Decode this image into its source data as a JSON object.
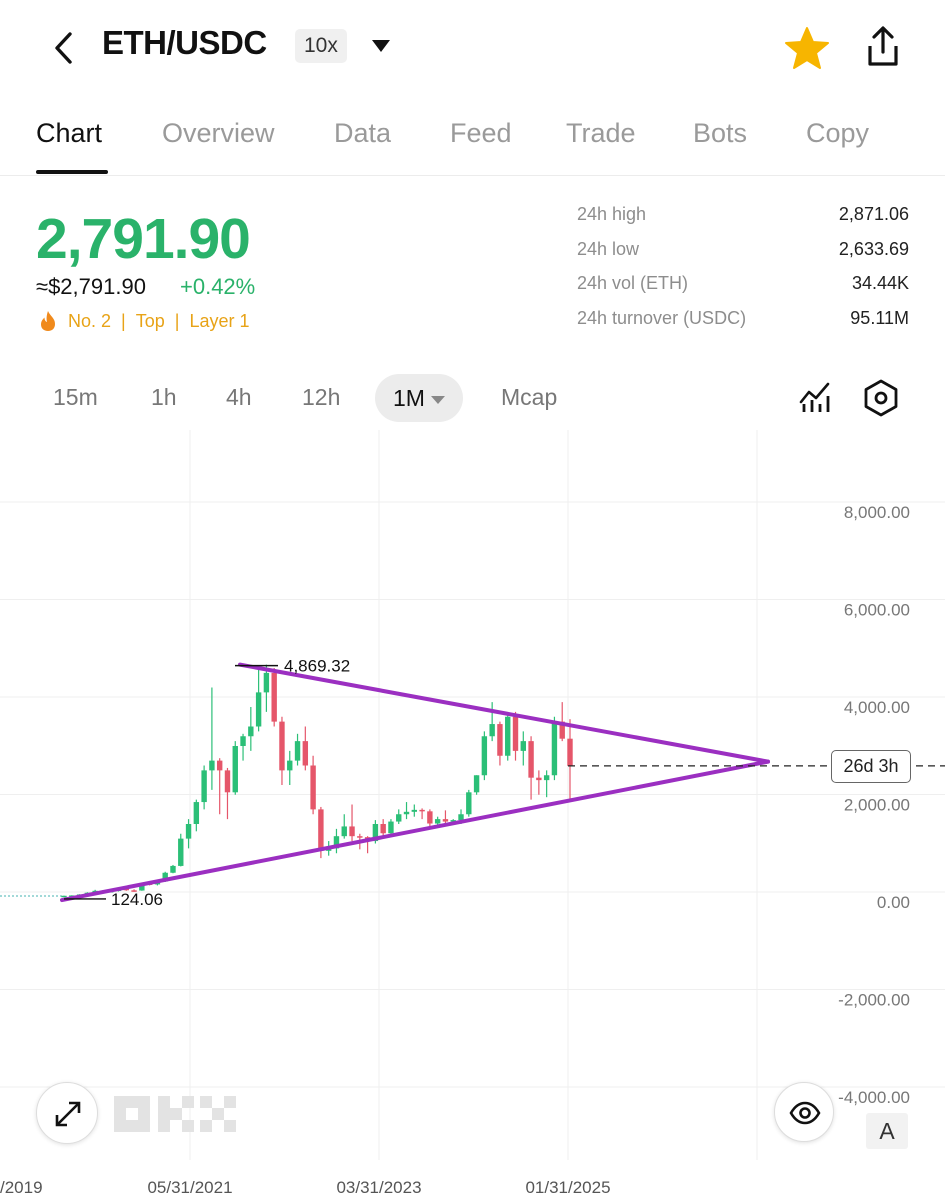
{
  "header": {
    "pair": "ETH/USDC",
    "leverage": "10x",
    "icons": [
      "back-arrow-icon",
      "caret-down-icon",
      "star-icon",
      "share-icon"
    ],
    "star_color": "#f7b500"
  },
  "tabs": [
    "Chart",
    "Overview",
    "Data",
    "Feed",
    "Trade",
    "Bots",
    "Copy"
  ],
  "active_tab": "Chart",
  "ticker": {
    "price": "2,791.90",
    "usd_equiv": "≈$2,791.90",
    "change": "+0.42%",
    "tags": [
      "No. 2",
      "Top",
      "Layer 1"
    ],
    "positive_color": "#2ab26a",
    "tag_color": "#e8a317"
  },
  "stats": [
    {
      "label": "24h high",
      "value": "2,871.06"
    },
    {
      "label": "24h low",
      "value": "2,633.69"
    },
    {
      "label": "24h vol (ETH)",
      "value": "34.44K"
    },
    {
      "label": "24h turnover (USDC)",
      "value": "95.11M"
    }
  ],
  "intervals": [
    "15m",
    "1h",
    "4h",
    "12h",
    "1M",
    "Mcap"
  ],
  "active_interval": "1M",
  "chart_data": {
    "type": "candlestick",
    "y_ticks": [
      "8,000.00",
      "6,000.00",
      "4,000.00",
      "2,000.00",
      "0.00",
      "-2,000.00",
      "-4,000.00"
    ],
    "x_ticks": [
      "/2019",
      "05/31/2021",
      "03/31/2023",
      "01/31/2025"
    ],
    "annotations": {
      "high": "4,869.32",
      "low": "124.06",
      "countdown": "26d 3h"
    },
    "current_price": 2791.9,
    "up_color": "#2bbf77",
    "down_color": "#e5566a",
    "trendline_color": "#9b2fc1",
    "candles": [
      [
        125,
        130,
        120,
        128
      ],
      [
        128,
        138,
        122,
        135
      ],
      [
        135,
        160,
        130,
        155
      ],
      [
        155,
        200,
        150,
        190
      ],
      [
        190,
        250,
        180,
        230
      ],
      [
        230,
        245,
        200,
        215
      ],
      [
        215,
        240,
        195,
        225
      ],
      [
        225,
        290,
        215,
        280
      ],
      [
        280,
        300,
        230,
        240
      ],
      [
        240,
        260,
        210,
        235
      ],
      [
        235,
        400,
        230,
        380
      ],
      [
        380,
        420,
        340,
        360
      ],
      [
        360,
        430,
        340,
        420
      ],
      [
        420,
        620,
        410,
        600
      ],
      [
        600,
        760,
        590,
        740
      ],
      [
        740,
        1400,
        730,
        1300
      ],
      [
        1300,
        1700,
        1100,
        1600
      ],
      [
        1600,
        2100,
        1450,
        2050
      ],
      [
        2050,
        2800,
        1900,
        2700
      ],
      [
        2700,
        4400,
        2300,
        2900
      ],
      [
        2900,
        2950,
        1800,
        2700
      ],
      [
        2700,
        2750,
        1700,
        2250
      ],
      [
        2250,
        3300,
        2200,
        3200
      ],
      [
        3200,
        3450,
        2900,
        3400
      ],
      [
        3400,
        4000,
        3100,
        3600
      ],
      [
        3600,
        4800,
        3500,
        4300
      ],
      [
        4300,
        4869,
        3900,
        4700
      ],
      [
        4700,
        4800,
        3600,
        3700
      ],
      [
        3700,
        3800,
        2400,
        2700
      ],
      [
        2700,
        3100,
        2400,
        2900
      ],
      [
        2900,
        3450,
        2800,
        3300
      ],
      [
        3300,
        3600,
        2700,
        2800
      ],
      [
        2800,
        3000,
        1800,
        1900
      ],
      [
        1900,
        1950,
        900,
        1050
      ],
      [
        1050,
        1250,
        950,
        1100
      ],
      [
        1100,
        1500,
        1000,
        1350
      ],
      [
        1350,
        1800,
        1300,
        1550
      ],
      [
        1550,
        2000,
        1250,
        1350
      ],
      [
        1350,
        1400,
        1080,
        1330
      ],
      [
        1330,
        1350,
        1000,
        1250
      ],
      [
        1250,
        1680,
        1200,
        1600
      ],
      [
        1600,
        1700,
        1300,
        1410
      ],
      [
        1410,
        1700,
        1400,
        1650
      ],
      [
        1650,
        1900,
        1600,
        1800
      ],
      [
        1800,
        2050,
        1700,
        1850
      ],
      [
        1850,
        2000,
        1750,
        1890
      ],
      [
        1890,
        1920,
        1700,
        1860
      ],
      [
        1860,
        1900,
        1550,
        1610
      ],
      [
        1610,
        1750,
        1550,
        1700
      ],
      [
        1700,
        1880,
        1600,
        1650
      ],
      [
        1650,
        1700,
        1600,
        1680
      ],
      [
        1680,
        1900,
        1600,
        1800
      ],
      [
        1800,
        2300,
        1750,
        2250
      ],
      [
        2250,
        2600,
        2200,
        2600
      ],
      [
        2600,
        3500,
        2500,
        3400
      ],
      [
        3400,
        4100,
        3300,
        3650
      ],
      [
        3650,
        3700,
        2800,
        3000
      ],
      [
        3000,
        3850,
        2900,
        3800
      ],
      [
        3800,
        3900,
        2900,
        3100
      ],
      [
        3100,
        3500,
        2800,
        3300
      ],
      [
        3300,
        3400,
        2100,
        2550
      ],
      [
        2550,
        2700,
        2200,
        2500
      ],
      [
        2500,
        2700,
        2150,
        2600
      ],
      [
        2600,
        3800,
        2500,
        3700
      ],
      [
        3700,
        4100,
        3300,
        3350
      ],
      [
        3350,
        3750,
        2100,
        2791
      ]
    ]
  }
}
